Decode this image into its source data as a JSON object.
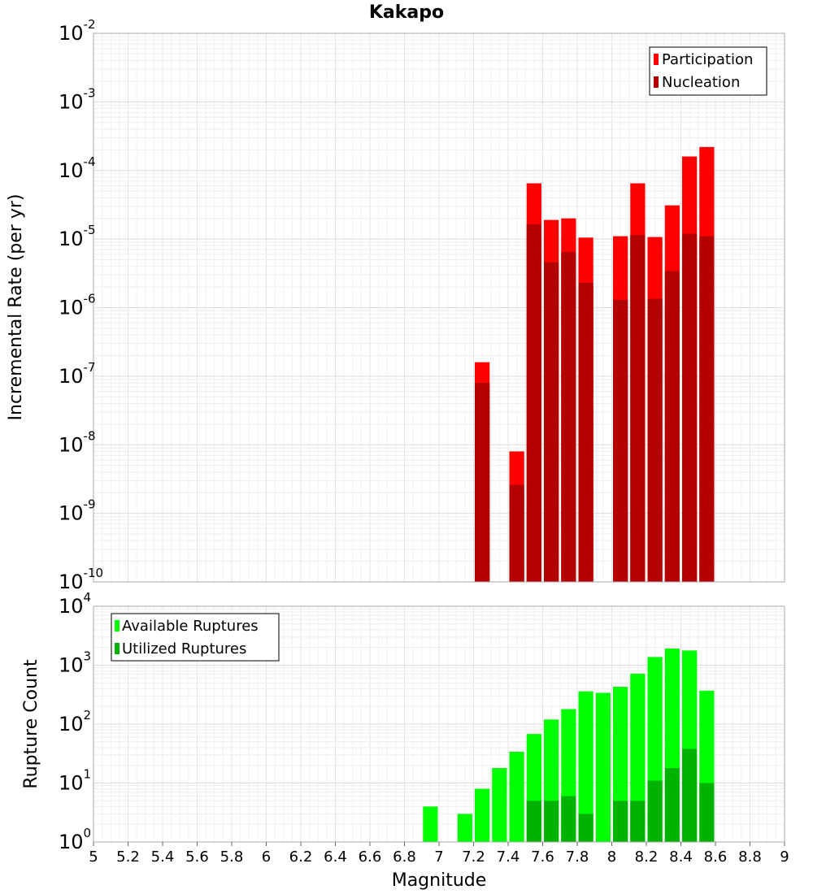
{
  "chart_data": [
    {
      "type": "bar",
      "title": "Kakapo",
      "ylabel": "Incremental Rate (per yr)",
      "xlabel": "",
      "x_range": [
        5,
        9
      ],
      "ylim": [
        1e-10,
        0.01
      ],
      "yscale": "log",
      "grid": true,
      "legend_position": "top-right",
      "y_ticks": [
        {
          "base": "10",
          "exp": "-2"
        },
        {
          "base": "10",
          "exp": "-3"
        },
        {
          "base": "10",
          "exp": "-4"
        },
        {
          "base": "10",
          "exp": "-5"
        },
        {
          "base": "10",
          "exp": "-6"
        },
        {
          "base": "10",
          "exp": "-7"
        },
        {
          "base": "10",
          "exp": "-8"
        },
        {
          "base": "10",
          "exp": "-9"
        },
        {
          "base": "10",
          "exp": "-10"
        }
      ],
      "series": [
        {
          "name": "Participation",
          "color": "#ff0000",
          "x": [
            7.25,
            7.45,
            7.55,
            7.65,
            7.75,
            7.85,
            8.05,
            8.15,
            8.25,
            8.35,
            8.45,
            8.55
          ],
          "values": [
            1.6e-07,
            8e-09,
            6.5e-05,
            1.9e-05,
            2e-05,
            1.05e-05,
            1.1e-05,
            6.5e-05,
            1.07e-05,
            3.1e-05,
            0.00016,
            0.00022
          ]
        },
        {
          "name": "Nucleation",
          "color": "#b30000",
          "x": [
            7.25,
            7.45,
            7.55,
            7.65,
            7.75,
            7.85,
            8.05,
            8.15,
            8.25,
            8.35,
            8.45,
            8.55
          ],
          "values": [
            8e-08,
            2.6e-09,
            1.65e-05,
            4.6e-06,
            6.5e-06,
            2.3e-06,
            1.3e-06,
            1.15e-05,
            1.35e-06,
            3.4e-06,
            1.2e-05,
            1.1e-05
          ]
        }
      ]
    },
    {
      "type": "bar",
      "title": "",
      "ylabel": "Rupture Count",
      "xlabel": "Magnitude",
      "x_range": [
        5,
        9
      ],
      "ylim": [
        1,
        10000
      ],
      "yscale": "log",
      "grid": true,
      "legend_position": "top-left",
      "x_tick_labels": [
        "5",
        "5.2",
        "5.4",
        "5.6",
        "5.8",
        "6",
        "6.2",
        "6.4",
        "6.6",
        "6.8",
        "7",
        "7.2",
        "7.4",
        "7.6",
        "7.8",
        "8",
        "8.2",
        "8.4",
        "8.6",
        "8.8",
        "9"
      ],
      "y_ticks": [
        {
          "base": "10",
          "exp": "4"
        },
        {
          "base": "10",
          "exp": "3"
        },
        {
          "base": "10",
          "exp": "2"
        },
        {
          "base": "10",
          "exp": "1"
        },
        {
          "base": "10",
          "exp": "0"
        }
      ],
      "series": [
        {
          "name": "Available Ruptures",
          "color": "#00ff00",
          "x": [
            6.95,
            7.05,
            7.15,
            7.25,
            7.35,
            7.45,
            7.55,
            7.65,
            7.75,
            7.85,
            7.95,
            8.05,
            8.15,
            8.25,
            8.35,
            8.45,
            8.55
          ],
          "values": [
            4,
            1,
            3,
            8,
            18,
            34,
            68,
            120,
            180,
            360,
            340,
            430,
            720,
            1380,
            1920,
            1780,
            370
          ]
        },
        {
          "name": "Utilized Ruptures",
          "color": "#00b300",
          "x": [
            7.15,
            7.25,
            7.35,
            7.45,
            7.55,
            7.65,
            7.75,
            7.85,
            8.05,
            8.15,
            8.25,
            8.35,
            8.45,
            8.55
          ],
          "values": [
            1,
            1,
            1,
            1,
            5,
            5,
            6,
            3,
            5,
            5,
            11,
            18,
            38,
            10
          ]
        }
      ]
    }
  ]
}
